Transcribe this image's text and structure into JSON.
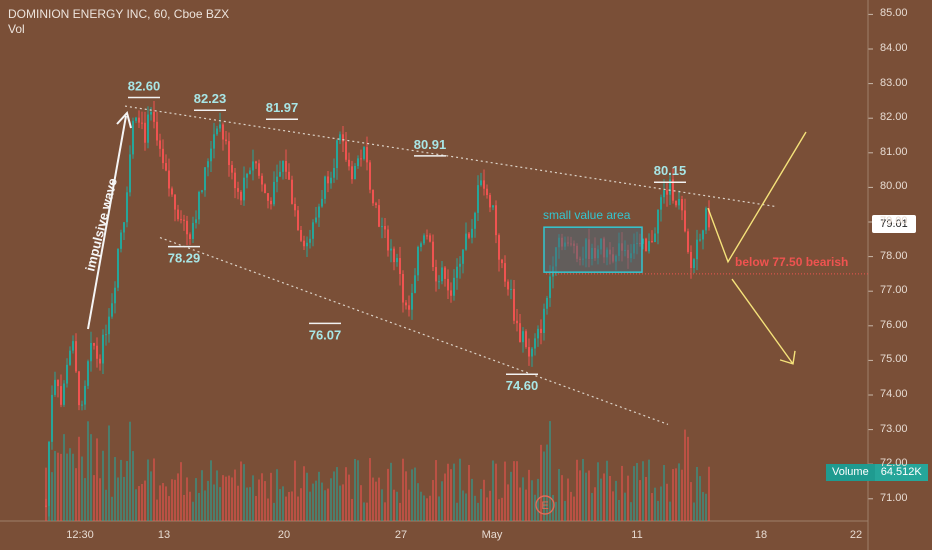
{
  "header": {
    "title": "DOMINION ENERGY INC, 60, Cboe BZX",
    "volume_label": "Vol"
  },
  "volume_badge": {
    "label": "Volume",
    "value": "64.512K"
  },
  "price_badge": "79.01",
  "colors": {
    "background": "#7a4f37",
    "up": "#26a69a",
    "down": "#ef5350",
    "annotation": "#a8e6e6",
    "projection": "#f5e27a",
    "bearish": "#ef5350"
  },
  "chart_data": {
    "type": "candlestick",
    "title": "DOMINION ENERGY INC, 60, Cboe BZX",
    "y_axis": {
      "range": [
        70.5,
        85.3
      ],
      "ticks": [
        "85.00",
        "84.00",
        "83.00",
        "82.00",
        "81.00",
        "80.00",
        "79.00",
        "78.00",
        "77.00",
        "76.00",
        "75.00",
        "74.00",
        "73.00",
        "72.00",
        "71.00"
      ]
    },
    "x_axis": {
      "ticks": [
        "12:30",
        "13",
        "20",
        "27",
        "May",
        "11",
        "18",
        "22"
      ]
    },
    "price_levels": [
      {
        "label": "82.60",
        "value": 82.6
      },
      {
        "label": "82.23",
        "value": 82.23
      },
      {
        "label": "81.97",
        "value": 81.97
      },
      {
        "label": "80.91",
        "value": 80.91
      },
      {
        "label": "80.15",
        "value": 80.15
      },
      {
        "label": "78.29",
        "value": 78.29
      },
      {
        "label": "76.07",
        "value": 76.07
      },
      {
        "label": "74.60",
        "value": 74.6
      }
    ],
    "annotations": {
      "impulsive_wave": "impulsive wave",
      "value_area": "small value area",
      "bearish_note": "below 77.50 bearish",
      "bearish_level": 77.5,
      "value_area_range": [
        77.55,
        78.85
      ],
      "earnings_marker": "E"
    },
    "trend_lines": [
      {
        "name": "upper",
        "from": 82.35,
        "to": 79.45
      },
      {
        "name": "lower",
        "from": 78.55,
        "to": 73.15
      }
    ],
    "price_path": [
      [
        70.8,
        74.0,
        74.8,
        73.6,
        75.0,
        75.6,
        74.2,
        73.4,
        74.8,
        75.5,
        75.0,
        75.5,
        76.4,
        77.0,
        78.5,
        79.2,
        80.8,
        82.3,
        82.1,
        81.5
      ],
      [
        81.8,
        82.0,
        80.9,
        80.2,
        79.5,
        79.2,
        78.6,
        79.3,
        80.1,
        81.2,
        82.0,
        81.3,
        80.5,
        79.7,
        80.4,
        80.9,
        80.1,
        79.6,
        80.0,
        80.7
      ],
      [
        81.0,
        80.1,
        79.3,
        78.6,
        78.4,
        78.9,
        79.6,
        80.3,
        80.6,
        81.4,
        81.0,
        80.4,
        80.7,
        81.1,
        80.3,
        79.5,
        78.8,
        78.4,
        78.0,
        77.6
      ],
      [
        77.1,
        76.7,
        76.3,
        76.6,
        77.3,
        78.1,
        78.6,
        78.9,
        78.4,
        77.9,
        77.4,
        77.3,
        77.7,
        77.2,
        76.9,
        77.3,
        77.9,
        78.3,
        78.6,
        78.3
      ],
      [
        78.5,
        78.7,
        79.4,
        80.7,
        80.2,
        79.9,
        79.5,
        79.7,
        79.3,
        78.4,
        77.9,
        77.5,
        77.1,
        77.3,
        76.7,
        76.2,
        75.9,
        75.6,
        75.9,
        75.3
      ],
      [
        74.9,
        75.3,
        75.8,
        76.4,
        77.6,
        78.6,
        78.5,
        78.2,
        78.4,
        77.9,
        78.3,
        78.0,
        78.4,
        78.1,
        78.3,
        77.9,
        78.4,
        78.1,
        78.5,
        78.2
      ],
      [
        78.6,
        78.0,
        78.4,
        78.9,
        79.6,
        79.9,
        80.0,
        79.7,
        79.4,
        78.2,
        77.6,
        78.4,
        78.9,
        79.2,
        79.0
      ]
    ],
    "projections": [
      {
        "name": "bullish path",
        "points": [
          [
            79.4,
            0
          ],
          [
            77.85,
            1
          ],
          [
            81.6,
            2
          ]
        ]
      },
      {
        "name": "bearish path",
        "points": [
          [
            77.35,
            0
          ],
          [
            74.9,
            1
          ]
        ]
      }
    ]
  }
}
